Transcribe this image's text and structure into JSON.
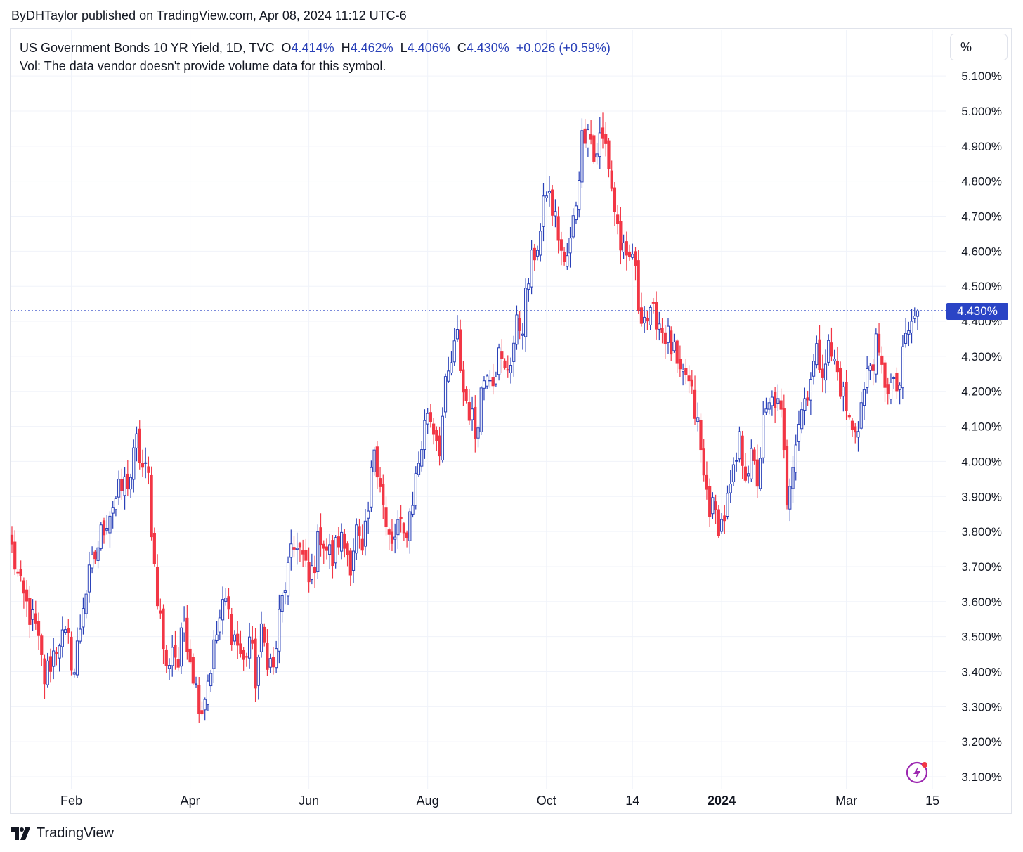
{
  "byline": "ByDHTaylor published on TradingView.com, Apr 08, 2024 11:12 UTC-6",
  "legend": {
    "symbol": "US Government Bonds 10 YR Yield, 1D, TVC",
    "open_label": "O",
    "open": "4.414%",
    "high_label": "H",
    "high": "4.462%",
    "low_label": "L",
    "low": "4.406%",
    "close_label": "C",
    "close": "4.430%",
    "change": "+0.026 (+0.59%)",
    "volume_note": "Vol: The data vendor doesn't provide volume data for this symbol."
  },
  "scale_mode": "%",
  "current_price_label": "4.430%",
  "brand": "TradingView",
  "colors": {
    "up": "#2940b8",
    "down": "#f23645",
    "grid": "#f0f3fa",
    "axis_text": "#131722",
    "price_line": "#2a44c5"
  },
  "icons": {
    "brand": "tradingview-logo-icon",
    "snapshot": "lightning-bolt-icon"
  },
  "chart_data": {
    "type": "candlestick",
    "ylim": [
      3.05,
      5.15
    ],
    "y_ticks": [
      "3.100%",
      "3.200%",
      "3.300%",
      "3.400%",
      "3.500%",
      "3.600%",
      "3.700%",
      "3.800%",
      "3.900%",
      "4.000%",
      "4.100%",
      "4.200%",
      "4.300%",
      "4.400%",
      "4.500%",
      "4.600%",
      "4.700%",
      "4.800%",
      "4.900%",
      "5.000%",
      "5.100%"
    ],
    "x_ticks": [
      {
        "label": "Feb",
        "index": 20,
        "bold": false
      },
      {
        "label": "Apr",
        "index": 60,
        "bold": false
      },
      {
        "label": "Jun",
        "index": 100,
        "bold": false
      },
      {
        "label": "Aug",
        "index": 140,
        "bold": false
      },
      {
        "label": "Oct",
        "index": 180,
        "bold": false
      },
      {
        "label": "14",
        "index": 209,
        "bold": false
      },
      {
        "label": "2024",
        "index": 239,
        "bold": true
      },
      {
        "label": "Mar",
        "index": 281,
        "bold": false
      },
      {
        "label": "15",
        "index": 310,
        "bold": false
      }
    ],
    "current_price": 4.43,
    "bar_count": 306,
    "path": [
      [
        0,
        3.75
      ],
      [
        3,
        3.63
      ],
      [
        8,
        3.52
      ],
      [
        11,
        3.38
      ],
      [
        16,
        3.5
      ],
      [
        19,
        3.48
      ],
      [
        21,
        3.4
      ],
      [
        24,
        3.6
      ],
      [
        27,
        3.7
      ],
      [
        31,
        3.82
      ],
      [
        34,
        3.88
      ],
      [
        37,
        3.92
      ],
      [
        40,
        3.96
      ],
      [
        42,
        4.05
      ],
      [
        44,
        3.98
      ],
      [
        46,
        3.95
      ],
      [
        47,
        3.82
      ],
      [
        48,
        3.7
      ],
      [
        50,
        3.55
      ],
      [
        52,
        3.4
      ],
      [
        54,
        3.48
      ],
      [
        56,
        3.42
      ],
      [
        58,
        3.55
      ],
      [
        60,
        3.45
      ],
      [
        62,
        3.35
      ],
      [
        64,
        3.3
      ],
      [
        67,
        3.42
      ],
      [
        70,
        3.55
      ],
      [
        72,
        3.6
      ],
      [
        74,
        3.52
      ],
      [
        76,
        3.48
      ],
      [
        78,
        3.42
      ],
      [
        80,
        3.5
      ],
      [
        82,
        3.38
      ],
      [
        84,
        3.5
      ],
      [
        86,
        3.45
      ],
      [
        88,
        3.4
      ],
      [
        90,
        3.55
      ],
      [
        92,
        3.65
      ],
      [
        94,
        3.72
      ],
      [
        96,
        3.78
      ],
      [
        98,
        3.72
      ],
      [
        100,
        3.65
      ],
      [
        102,
        3.72
      ],
      [
        104,
        3.8
      ],
      [
        106,
        3.75
      ],
      [
        108,
        3.72
      ],
      [
        110,
        3.78
      ],
      [
        112,
        3.76
      ],
      [
        114,
        3.72
      ],
      [
        116,
        3.8
      ],
      [
        118,
        3.72
      ],
      [
        120,
        3.85
      ],
      [
        122,
        4.05
      ],
      [
        124,
        3.95
      ],
      [
        126,
        3.8
      ],
      [
        128,
        3.75
      ],
      [
        130,
        3.82
      ],
      [
        132,
        3.78
      ],
      [
        134,
        3.85
      ],
      [
        136,
        3.95
      ],
      [
        138,
        4.05
      ],
      [
        140,
        4.15
      ],
      [
        142,
        4.1
      ],
      [
        144,
        4.05
      ],
      [
        146,
        4.2
      ],
      [
        148,
        4.28
      ],
      [
        150,
        4.35
      ],
      [
        152,
        4.2
      ],
      [
        154,
        4.15
      ],
      [
        156,
        4.08
      ],
      [
        158,
        4.2
      ],
      [
        160,
        4.28
      ],
      [
        162,
        4.25
      ],
      [
        164,
        4.3
      ],
      [
        166,
        4.25
      ],
      [
        168,
        4.3
      ],
      [
        170,
        4.38
      ],
      [
        172,
        4.4
      ],
      [
        174,
        4.52
      ],
      [
        176,
        4.6
      ],
      [
        178,
        4.65
      ],
      [
        180,
        4.78
      ],
      [
        182,
        4.72
      ],
      [
        184,
        4.65
      ],
      [
        186,
        4.55
      ],
      [
        188,
        4.62
      ],
      [
        190,
        4.75
      ],
      [
        192,
        4.92
      ],
      [
        194,
        4.98
      ],
      [
        196,
        4.86
      ],
      [
        198,
        4.92
      ],
      [
        200,
        4.9
      ],
      [
        201,
        4.85
      ],
      [
        203,
        4.72
      ],
      [
        205,
        4.62
      ],
      [
        207,
        4.55
      ],
      [
        209,
        4.6
      ],
      [
        211,
        4.45
      ],
      [
        213,
        4.42
      ],
      [
        215,
        4.4
      ],
      [
        217,
        4.42
      ],
      [
        219,
        4.38
      ],
      [
        221,
        4.35
      ],
      [
        223,
        4.3
      ],
      [
        225,
        4.22
      ],
      [
        227,
        4.25
      ],
      [
        229,
        4.18
      ],
      [
        231,
        4.1
      ],
      [
        233,
        3.95
      ],
      [
        235,
        3.88
      ],
      [
        237,
        3.84
      ],
      [
        239,
        3.82
      ],
      [
        241,
        3.88
      ],
      [
        243,
        3.95
      ],
      [
        245,
        4.05
      ],
      [
        247,
        3.98
      ],
      [
        249,
        4.0
      ],
      [
        251,
        3.95
      ],
      [
        253,
        4.1
      ],
      [
        255,
        4.15
      ],
      [
        257,
        4.18
      ],
      [
        259,
        4.12
      ],
      [
        261,
        3.9
      ],
      [
        263,
        4.02
      ],
      [
        265,
        4.12
      ],
      [
        267,
        4.18
      ],
      [
        269,
        4.25
      ],
      [
        271,
        4.3
      ],
      [
        273,
        4.28
      ],
      [
        275,
        4.32
      ],
      [
        277,
        4.28
      ],
      [
        279,
        4.22
      ],
      [
        281,
        4.15
      ],
      [
        283,
        4.08
      ],
      [
        285,
        4.12
      ],
      [
        287,
        4.2
      ],
      [
        289,
        4.28
      ],
      [
        291,
        4.32
      ],
      [
        293,
        4.25
      ],
      [
        295,
        4.22
      ],
      [
        297,
        4.2
      ],
      [
        299,
        4.22
      ],
      [
        301,
        4.35
      ],
      [
        303,
        4.4
      ],
      [
        305,
        4.43
      ]
    ]
  }
}
